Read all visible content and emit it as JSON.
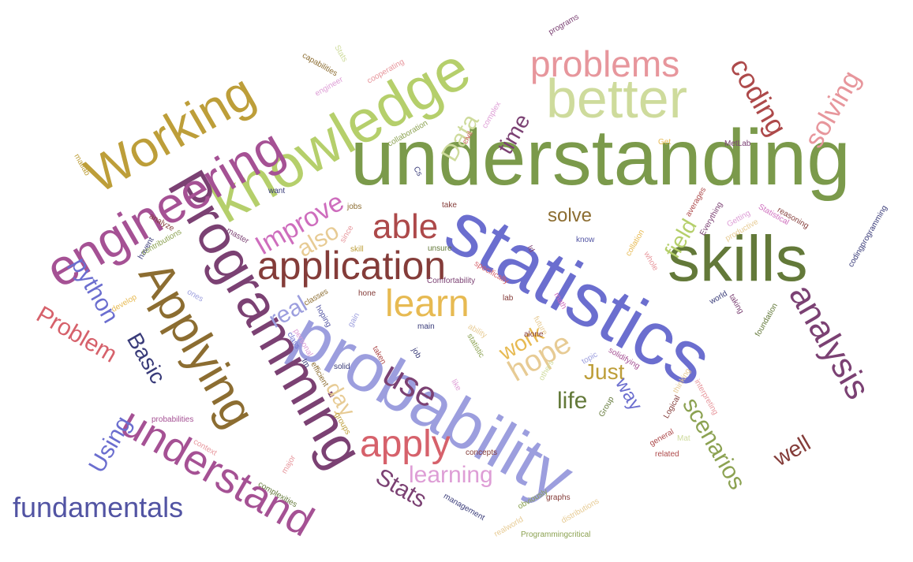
{
  "words": [
    {
      "text": "understanding",
      "color": "#7b9a4b",
      "rot": 0
    },
    {
      "text": "statistics",
      "color": "#6b6ecf",
      "rot": 30
    },
    {
      "text": "probability",
      "color": "#9c9ede",
      "rot": 30
    },
    {
      "text": "skills",
      "color": "#637939",
      "rot": 0
    },
    {
      "text": "knowledge",
      "color": "#b5cf6b",
      "rot": -30
    },
    {
      "text": "Programming",
      "color": "#7b4173",
      "rot": 60
    },
    {
      "text": "better",
      "color": "#cedb9c",
      "rot": 0
    },
    {
      "text": "engineering",
      "color": "#a55194",
      "rot": -30
    },
    {
      "text": "Working",
      "color": "#bd9e39",
      "rot": -30
    },
    {
      "text": "Applying",
      "color": "#8c6d31",
      "rot": 60
    },
    {
      "text": "understand",
      "color": "#a55194",
      "rot": 30
    },
    {
      "text": "application",
      "color": "#843c39",
      "rot": 0
    },
    {
      "text": "problems",
      "color": "#e7969c",
      "rot": 0
    },
    {
      "text": "learn",
      "color": "#e7ba52",
      "rot": 0
    },
    {
      "text": "analysis",
      "color": "#7b4173",
      "rot": 60
    },
    {
      "text": "apply",
      "color": "#d6616b",
      "rot": 0
    },
    {
      "text": "able",
      "color": "#ad494a",
      "rot": 0
    },
    {
      "text": "use",
      "color": "#7b4173",
      "rot": 30
    },
    {
      "text": "fundamentals",
      "color": "#5254a3",
      "rot": 0
    },
    {
      "text": "coding",
      "color": "#ad494a",
      "rot": 60
    },
    {
      "text": "solving",
      "color": "#e7969c",
      "rot": -60
    },
    {
      "text": "hope",
      "color": "#e7cb94",
      "rot": -30
    },
    {
      "text": "scenarios",
      "color": "#8ca252",
      "rot": 60
    },
    {
      "text": "Data",
      "color": "#cedb9c",
      "rot": -60
    },
    {
      "text": "Improve",
      "color": "#ce6dbd",
      "rot": -30
    },
    {
      "text": "learning",
      "color": "#de9ed6",
      "rot": 0
    },
    {
      "text": "python",
      "color": "#6b6ecf",
      "rot": 60
    },
    {
      "text": "Problem",
      "color": "#d6616b",
      "rot": 30
    },
    {
      "text": "Stats",
      "color": "#7b4173",
      "rot": 30
    },
    {
      "text": "Using",
      "color": "#6b6ecf",
      "rot": -60
    },
    {
      "text": "Basic",
      "color": "#393b79",
      "rot": 60
    },
    {
      "text": "solve",
      "color": "#8c6d31",
      "rot": 0
    },
    {
      "text": "also",
      "color": "#e7cb94",
      "rot": -30
    },
    {
      "text": "real",
      "color": "#9c9ede",
      "rot": -30
    },
    {
      "text": "time",
      "color": "#7b4173",
      "rot": -60
    },
    {
      "text": "field",
      "color": "#b5cf6b",
      "rot": -60
    },
    {
      "text": "work",
      "color": "#e7ba52",
      "rot": -30
    },
    {
      "text": "Just",
      "color": "#bd9e39",
      "rot": 0
    },
    {
      "text": "life",
      "color": "#637939",
      "rot": 0
    },
    {
      "text": "day",
      "color": "#e7cb94",
      "rot": 60
    },
    {
      "text": "way",
      "color": "#6b6ecf",
      "rot": 60
    },
    {
      "text": "well",
      "color": "#843c39",
      "rot": -30
    },
    {
      "text": "want",
      "color": "#393b79",
      "rot": 0
    },
    {
      "text": "matlab",
      "color": "#bd9e39",
      "rot": 60
    },
    {
      "text": "capabilities",
      "color": "#8c6d31",
      "rot": 30
    },
    {
      "text": "engineer",
      "color": "#de9ed6",
      "rot": -30
    },
    {
      "text": "Stats",
      "color": "#cedb9c",
      "rot": 60
    },
    {
      "text": "cooperating",
      "color": "#e7969c",
      "rot": -30
    },
    {
      "text": "programs",
      "color": "#7b4173",
      "rot": -30
    },
    {
      "text": "collaboration",
      "color": "#8ca252",
      "rot": -30
    },
    {
      "text": "complex",
      "color": "#de9ed6",
      "rot": -60
    },
    {
      "text": "civil",
      "color": "#d6616b",
      "rot": -60
    },
    {
      "text": "Cs",
      "color": "#393b79",
      "rot": 60
    },
    {
      "text": "jobs",
      "color": "#8c6d31",
      "rot": 0
    },
    {
      "text": "Get",
      "color": "#e7ba52",
      "rot": 0
    },
    {
      "text": "MetLab",
      "color": "#7b4173",
      "rot": 0
    },
    {
      "text": "take",
      "color": "#843c39",
      "rot": 0
    },
    {
      "text": "analyze",
      "color": "#843c39",
      "rot": 30
    },
    {
      "text": "havent",
      "color": "#393b79",
      "rot": -60
    },
    {
      "text": "contributions",
      "color": "#8ca252",
      "rot": -30
    },
    {
      "text": "master",
      "color": "#7b4173",
      "rot": 30
    },
    {
      "text": "since",
      "color": "#e7969c",
      "rot": -60
    },
    {
      "text": "skill",
      "color": "#bd9e39",
      "rot": 0
    },
    {
      "text": "unsure",
      "color": "#637939",
      "rot": 0
    },
    {
      "text": "averages",
      "color": "#ad494a",
      "rot": -60
    },
    {
      "text": "Everything",
      "color": "#7b4173",
      "rot": -60
    },
    {
      "text": "Getting",
      "color": "#de9ed6",
      "rot": -30
    },
    {
      "text": "Statistical",
      "color": "#ce6dbd",
      "rot": 30
    },
    {
      "text": "reasoning",
      "color": "#843c39",
      "rot": 30
    },
    {
      "text": "codingprogramming",
      "color": "#393b79",
      "rot": -60
    },
    {
      "text": "know",
      "color": "#5254a3",
      "rot": 0
    },
    {
      "text": "collation",
      "color": "#e7ba52",
      "rot": -60
    },
    {
      "text": "productive",
      "color": "#e7cb94",
      "rot": -30
    },
    {
      "text": "whole",
      "color": "#e7969c",
      "rot": 60
    },
    {
      "text": "Id",
      "color": "#7b4173",
      "rot": 60
    },
    {
      "text": "specifically",
      "color": "#d6616b",
      "rot": 30
    },
    {
      "text": "Comfortability",
      "color": "#7b4173",
      "rot": 0
    },
    {
      "text": "develop",
      "color": "#e7ba52",
      "rot": -30
    },
    {
      "text": "ones",
      "color": "#9c9ede",
      "rot": 30
    },
    {
      "text": "classes",
      "color": "#8c6d31",
      "rot": -30
    },
    {
      "text": "hone",
      "color": "#843c39",
      "rot": 0
    },
    {
      "text": "lab",
      "color": "#843c39",
      "rot": 0
    },
    {
      "text": "math",
      "color": "#ce6dbd",
      "rot": 60
    },
    {
      "text": "future",
      "color": "#e7cb94",
      "rot": 60
    },
    {
      "text": "world",
      "color": "#393b79",
      "rot": -30
    },
    {
      "text": "taking",
      "color": "#7b4173",
      "rot": 60
    },
    {
      "text": "foundation",
      "color": "#637939",
      "rot": -60
    },
    {
      "text": "hoping",
      "color": "#5254a3",
      "rot": 60
    },
    {
      "text": "class",
      "color": "#6b6ecf",
      "rot": 60
    },
    {
      "text": "gain",
      "color": "#9c9ede",
      "rot": -60
    },
    {
      "text": "main",
      "color": "#393b79",
      "rot": 0
    },
    {
      "text": "ability",
      "color": "#e7cb94",
      "rot": 30
    },
    {
      "text": "statistic",
      "color": "#8ca252",
      "rot": 60
    },
    {
      "text": "alone",
      "color": "#843c39",
      "rot": 0
    },
    {
      "text": "topic",
      "color": "#9c9ede",
      "rot": -30
    },
    {
      "text": "solidifying",
      "color": "#a55194",
      "rot": 30
    },
    {
      "text": "personal",
      "color": "#de9ed6",
      "rot": 60
    },
    {
      "text": "Im",
      "color": "#393b79",
      "rot": 60
    },
    {
      "text": "taken",
      "color": "#ad494a",
      "rot": 60
    },
    {
      "text": "job",
      "color": "#393b79",
      "rot": 60
    },
    {
      "text": "solid",
      "color": "#393b79",
      "rot": 0
    },
    {
      "text": "efficient",
      "color": "#8c6d31",
      "rot": 60
    },
    {
      "text": "thinking",
      "color": "#e7cb94",
      "rot": -60
    },
    {
      "text": "interpreting",
      "color": "#e7969c",
      "rot": 60
    },
    {
      "text": "Logical",
      "color": "#843c39",
      "rot": -60
    },
    {
      "text": "Group",
      "color": "#637939",
      "rot": -60
    },
    {
      "text": "like",
      "color": "#de9ed6",
      "rot": 60
    },
    {
      "text": "others",
      "color": "#cedb9c",
      "rot": -60
    },
    {
      "text": "general",
      "color": "#ad494a",
      "rot": -30
    },
    {
      "text": "Mat",
      "color": "#cedb9c",
      "rot": 0
    },
    {
      "text": "probabilities",
      "color": "#a55194",
      "rot": 0
    },
    {
      "text": "groups",
      "color": "#bd9e39",
      "rot": 60
    },
    {
      "text": "context",
      "color": "#e7969c",
      "rot": 30
    },
    {
      "text": "major",
      "color": "#e7969c",
      "rot": -60
    },
    {
      "text": "concepts",
      "color": "#843c39",
      "rot": 0
    },
    {
      "text": "related",
      "color": "#ad494a",
      "rot": 0
    },
    {
      "text": "complexities",
      "color": "#637939",
      "rot": 30
    },
    {
      "text": "management",
      "color": "#393b79",
      "rot": 30
    },
    {
      "text": "obviously",
      "color": "#8ca252",
      "rot": -30
    },
    {
      "text": "graphs",
      "color": "#843c39",
      "rot": 0
    },
    {
      "text": "distributions",
      "color": "#e7cb94",
      "rot": -30
    },
    {
      "text": "realworld",
      "color": "#e7cb94",
      "rot": -30
    },
    {
      "text": "Programmingcritical",
      "color": "#8ca252",
      "rot": 0
    }
  ]
}
